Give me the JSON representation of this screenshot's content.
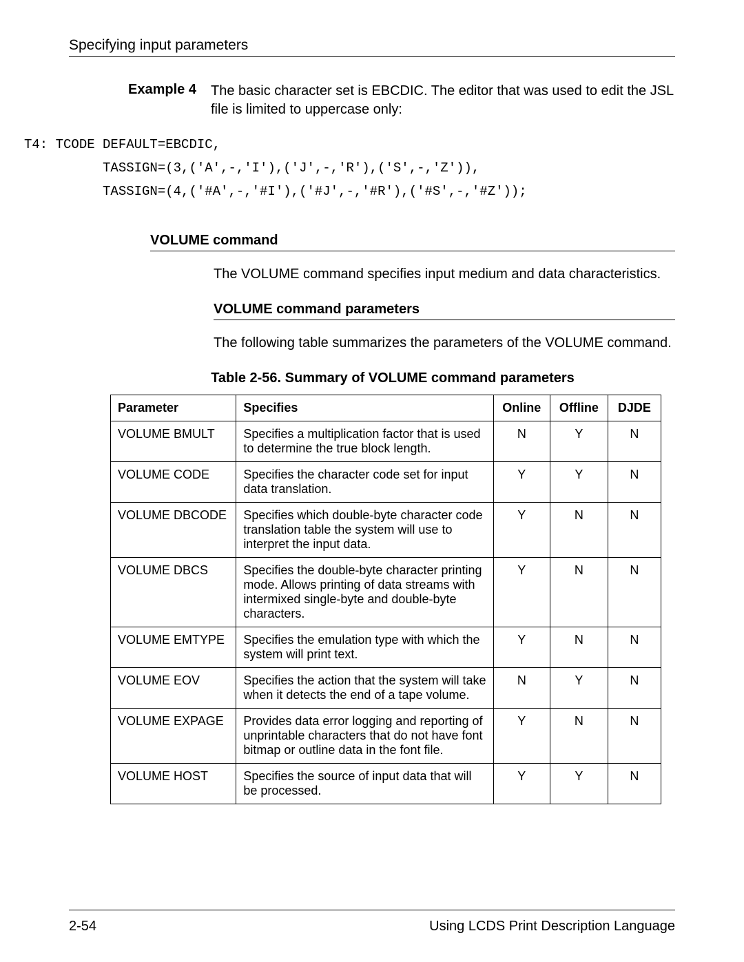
{
  "header": {
    "title": "Specifying input parameters"
  },
  "example": {
    "label": "Example 4",
    "text": "The basic character set is EBCDIC. The editor that was used to edit the JSL file is limited to uppercase only:"
  },
  "code": {
    "line1": "T4: TCODE DEFAULT=EBCDIC,",
    "line2": "          TASSIGN=(3,('A',-,'I'),('J',-,'R'),('S',-,'Z')),",
    "line3": "          TASSIGN=(4,('#A',-,'#I'),('#J',-,'#R'),('#S',-,'#Z'));"
  },
  "section1": {
    "heading": "VOLUME command",
    "body": "The VOLUME command specifies input medium and data characteristics."
  },
  "section2": {
    "heading": "VOLUME command parameters",
    "body": "The following table summarizes the parameters of the VOLUME command."
  },
  "table": {
    "caption": "Table 2-56. Summary of VOLUME command parameters",
    "headers": {
      "c1": "Parameter",
      "c2": "Specifies",
      "c3": "Online",
      "c4": "Offline",
      "c5": "DJDE"
    },
    "rows": [
      {
        "p": "VOLUME BMULT",
        "s": "Specifies a multiplication factor that is used to determine the true block length.",
        "on": "N",
        "off": "Y",
        "dj": "N"
      },
      {
        "p": "VOLUME CODE",
        "s": "Specifies the character code set for input data translation.",
        "on": "Y",
        "off": "Y",
        "dj": "N"
      },
      {
        "p": "VOLUME DBCODE",
        "s": "Specifies which double-byte character code translation table the system will use to interpret the input data.",
        "on": "Y",
        "off": "N",
        "dj": "N"
      },
      {
        "p": "VOLUME DBCS",
        "s": "Specifies the double-byte character printing mode. Allows printing of data streams with intermixed single-byte and double-byte characters.",
        "on": "Y",
        "off": "N",
        "dj": "N"
      },
      {
        "p": "VOLUME EMTYPE",
        "s": "Specifies the emulation type with which the system will print text.",
        "on": "Y",
        "off": "N",
        "dj": "N"
      },
      {
        "p": "VOLUME EOV",
        "s": "Specifies the action that the system will take when it detects the end of a tape volume.",
        "on": "N",
        "off": "Y",
        "dj": "N"
      },
      {
        "p": "VOLUME EXPAGE",
        "s": "Provides data error logging and reporting of unprintable characters that do not have font bitmap or outline data in the font file.",
        "on": "Y",
        "off": "N",
        "dj": "N"
      },
      {
        "p": "VOLUME HOST",
        "s": "Specifies the source of input data that will be processed.",
        "on": "Y",
        "off": "Y",
        "dj": "N"
      }
    ]
  },
  "footer": {
    "left": "2-54",
    "right": "Using LCDS Print Description Language"
  }
}
